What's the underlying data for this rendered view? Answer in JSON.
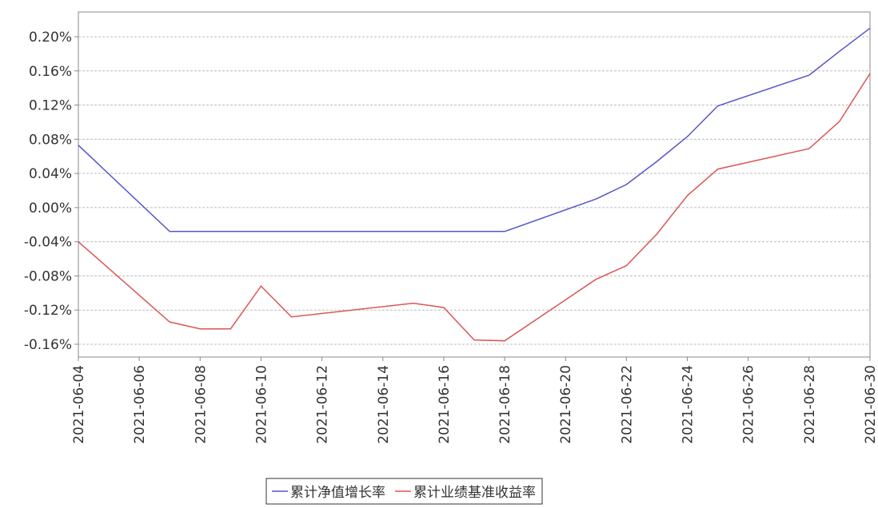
{
  "chart_data": {
    "type": "line",
    "x": [
      "2021-06-04",
      "2021-06-07",
      "2021-06-08",
      "2021-06-09",
      "2021-06-10",
      "2021-06-11",
      "2021-06-15",
      "2021-06-16",
      "2021-06-17",
      "2021-06-18",
      "2021-06-21",
      "2021-06-22",
      "2021-06-23",
      "2021-06-24",
      "2021-06-25",
      "2021-06-28",
      "2021-06-29",
      "2021-06-30"
    ],
    "series": [
      {
        "name": "累计净值增长率",
        "color": "#5555cc",
        "values": [
          0.073,
          -0.028,
          -0.028,
          -0.028,
          -0.028,
          -0.028,
          -0.028,
          -0.028,
          -0.028,
          -0.028,
          0.01,
          0.027,
          0.054,
          0.083,
          0.119,
          0.155,
          0.183,
          0.21
        ]
      },
      {
        "name": "累计业绩基准收益率",
        "color": "#dd5555",
        "values": [
          -0.04,
          -0.134,
          -0.142,
          -0.142,
          -0.092,
          -0.128,
          -0.112,
          -0.117,
          -0.155,
          -0.156,
          -0.084,
          -0.068,
          -0.031,
          0.014,
          0.045,
          0.069,
          0.101,
          0.157
        ]
      }
    ],
    "xlim": [
      "2021-06-04",
      "2021-06-30"
    ],
    "xticks": [
      "2021-06-04",
      "2021-06-06",
      "2021-06-08",
      "2021-06-10",
      "2021-06-12",
      "2021-06-14",
      "2021-06-16",
      "2021-06-18",
      "2021-06-20",
      "2021-06-22",
      "2021-06-24",
      "2021-06-26",
      "2021-06-28",
      "2021-06-30"
    ],
    "ylim": [
      -0.175,
      0.229
    ],
    "yticks": [
      {
        "value": 0.2,
        "label": "0.20%"
      },
      {
        "value": 0.16,
        "label": "0.16%"
      },
      {
        "value": 0.12,
        "label": "0.12%"
      },
      {
        "value": 0.08,
        "label": "0.08%"
      },
      {
        "value": 0.04,
        "label": "0.04%"
      },
      {
        "value": 0,
        "label": "0.00%"
      },
      {
        "value": -0.04,
        "label": "-0.04%"
      },
      {
        "value": -0.08,
        "label": "-0.08%"
      },
      {
        "value": -0.12,
        "label": "-0.12%"
      },
      {
        "value": -0.16,
        "label": "-0.16%"
      }
    ],
    "grid": true,
    "legend": "bottom"
  }
}
